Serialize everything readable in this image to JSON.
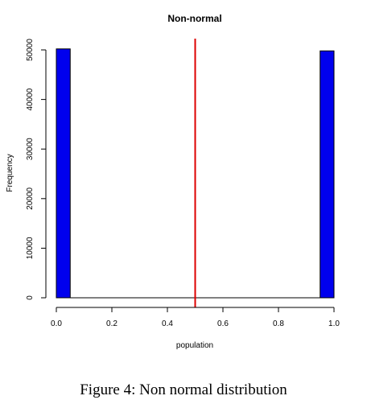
{
  "chart_data": {
    "type": "bar",
    "title": "Non-normal",
    "xlabel": "population",
    "ylabel": "Frequency",
    "xlim": [
      0,
      1
    ],
    "ylim": [
      0,
      50000
    ],
    "x_ticks": [
      "0.0",
      "0.2",
      "0.4",
      "0.6",
      "0.8",
      "1.0"
    ],
    "y_ticks": [
      "0",
      "10000",
      "20000",
      "30000",
      "40000",
      "50000"
    ],
    "bins": [
      {
        "x0": 0.0,
        "x1": 0.05,
        "count": 50200
      },
      {
        "x0": 0.95,
        "x1": 1.0,
        "count": 49800
      }
    ],
    "vline": {
      "x": 0.5,
      "color": "#dd0000"
    },
    "bar_color": "#0000ee"
  },
  "caption": "Figure 4:  Non normal distribution"
}
